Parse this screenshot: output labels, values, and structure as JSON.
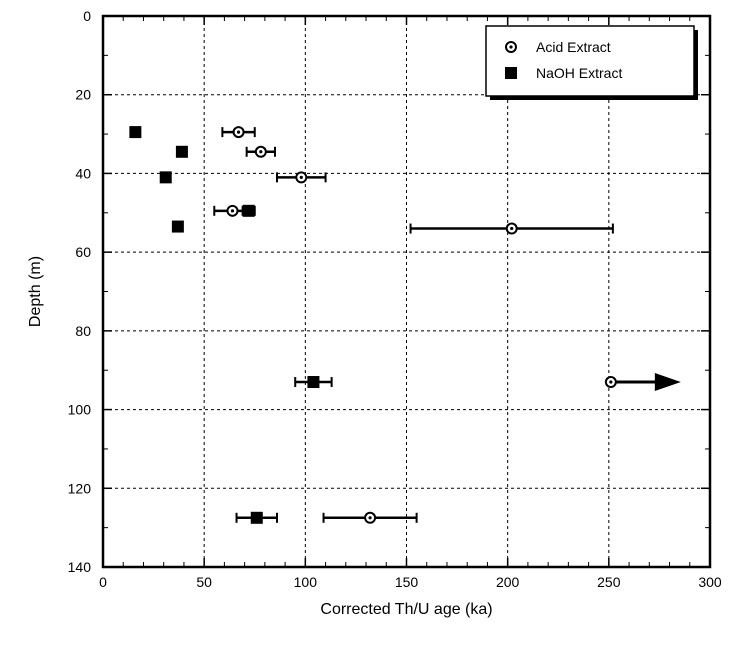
{
  "chart_data": {
    "type": "scatter",
    "xlabel": "Corrected Th/U age (ka)",
    "ylabel": "Depth (m)",
    "xlim": [
      0,
      300
    ],
    "ylim": [
      0,
      140
    ],
    "y_inverted": true,
    "x_ticks": [
      "0",
      "50",
      "100",
      "150",
      "200",
      "250",
      "300"
    ],
    "y_ticks": [
      "0",
      "20",
      "40",
      "60",
      "80",
      "100",
      "120",
      "140"
    ],
    "grid": "dashed major gridlines",
    "legend_position": "top-right",
    "series": [
      {
        "name": "Acid Extract",
        "marker": "open-circle-with-dot",
        "points": [
          {
            "x": 67,
            "y": 29.5,
            "xerr": 8
          },
          {
            "x": 78,
            "y": 34.5,
            "xerr": 7
          },
          {
            "x": 98,
            "y": 41,
            "xerr": 12
          },
          {
            "x": 64,
            "y": 49.5,
            "xerr": 9
          },
          {
            "x": 202,
            "y": 54,
            "xerr": 50
          },
          {
            "x": 251,
            "y": 93,
            "xerr": 0,
            "arrow": "right"
          },
          {
            "x": 132,
            "y": 127.5,
            "xerr": 23
          }
        ]
      },
      {
        "name": "NaOH Extract",
        "marker": "filled-square",
        "points": [
          {
            "x": 16,
            "y": 29.5,
            "xerr": 0
          },
          {
            "x": 39,
            "y": 34.5,
            "xerr": 0
          },
          {
            "x": 31,
            "y": 41,
            "xerr": 0
          },
          {
            "x": 72,
            "y": 49.5,
            "xerr": 3
          },
          {
            "x": 37,
            "y": 53.5,
            "xerr": 0
          },
          {
            "x": 104,
            "y": 93,
            "xerr": 9
          },
          {
            "x": 76,
            "y": 127.5,
            "xerr": 10
          }
        ]
      }
    ]
  }
}
